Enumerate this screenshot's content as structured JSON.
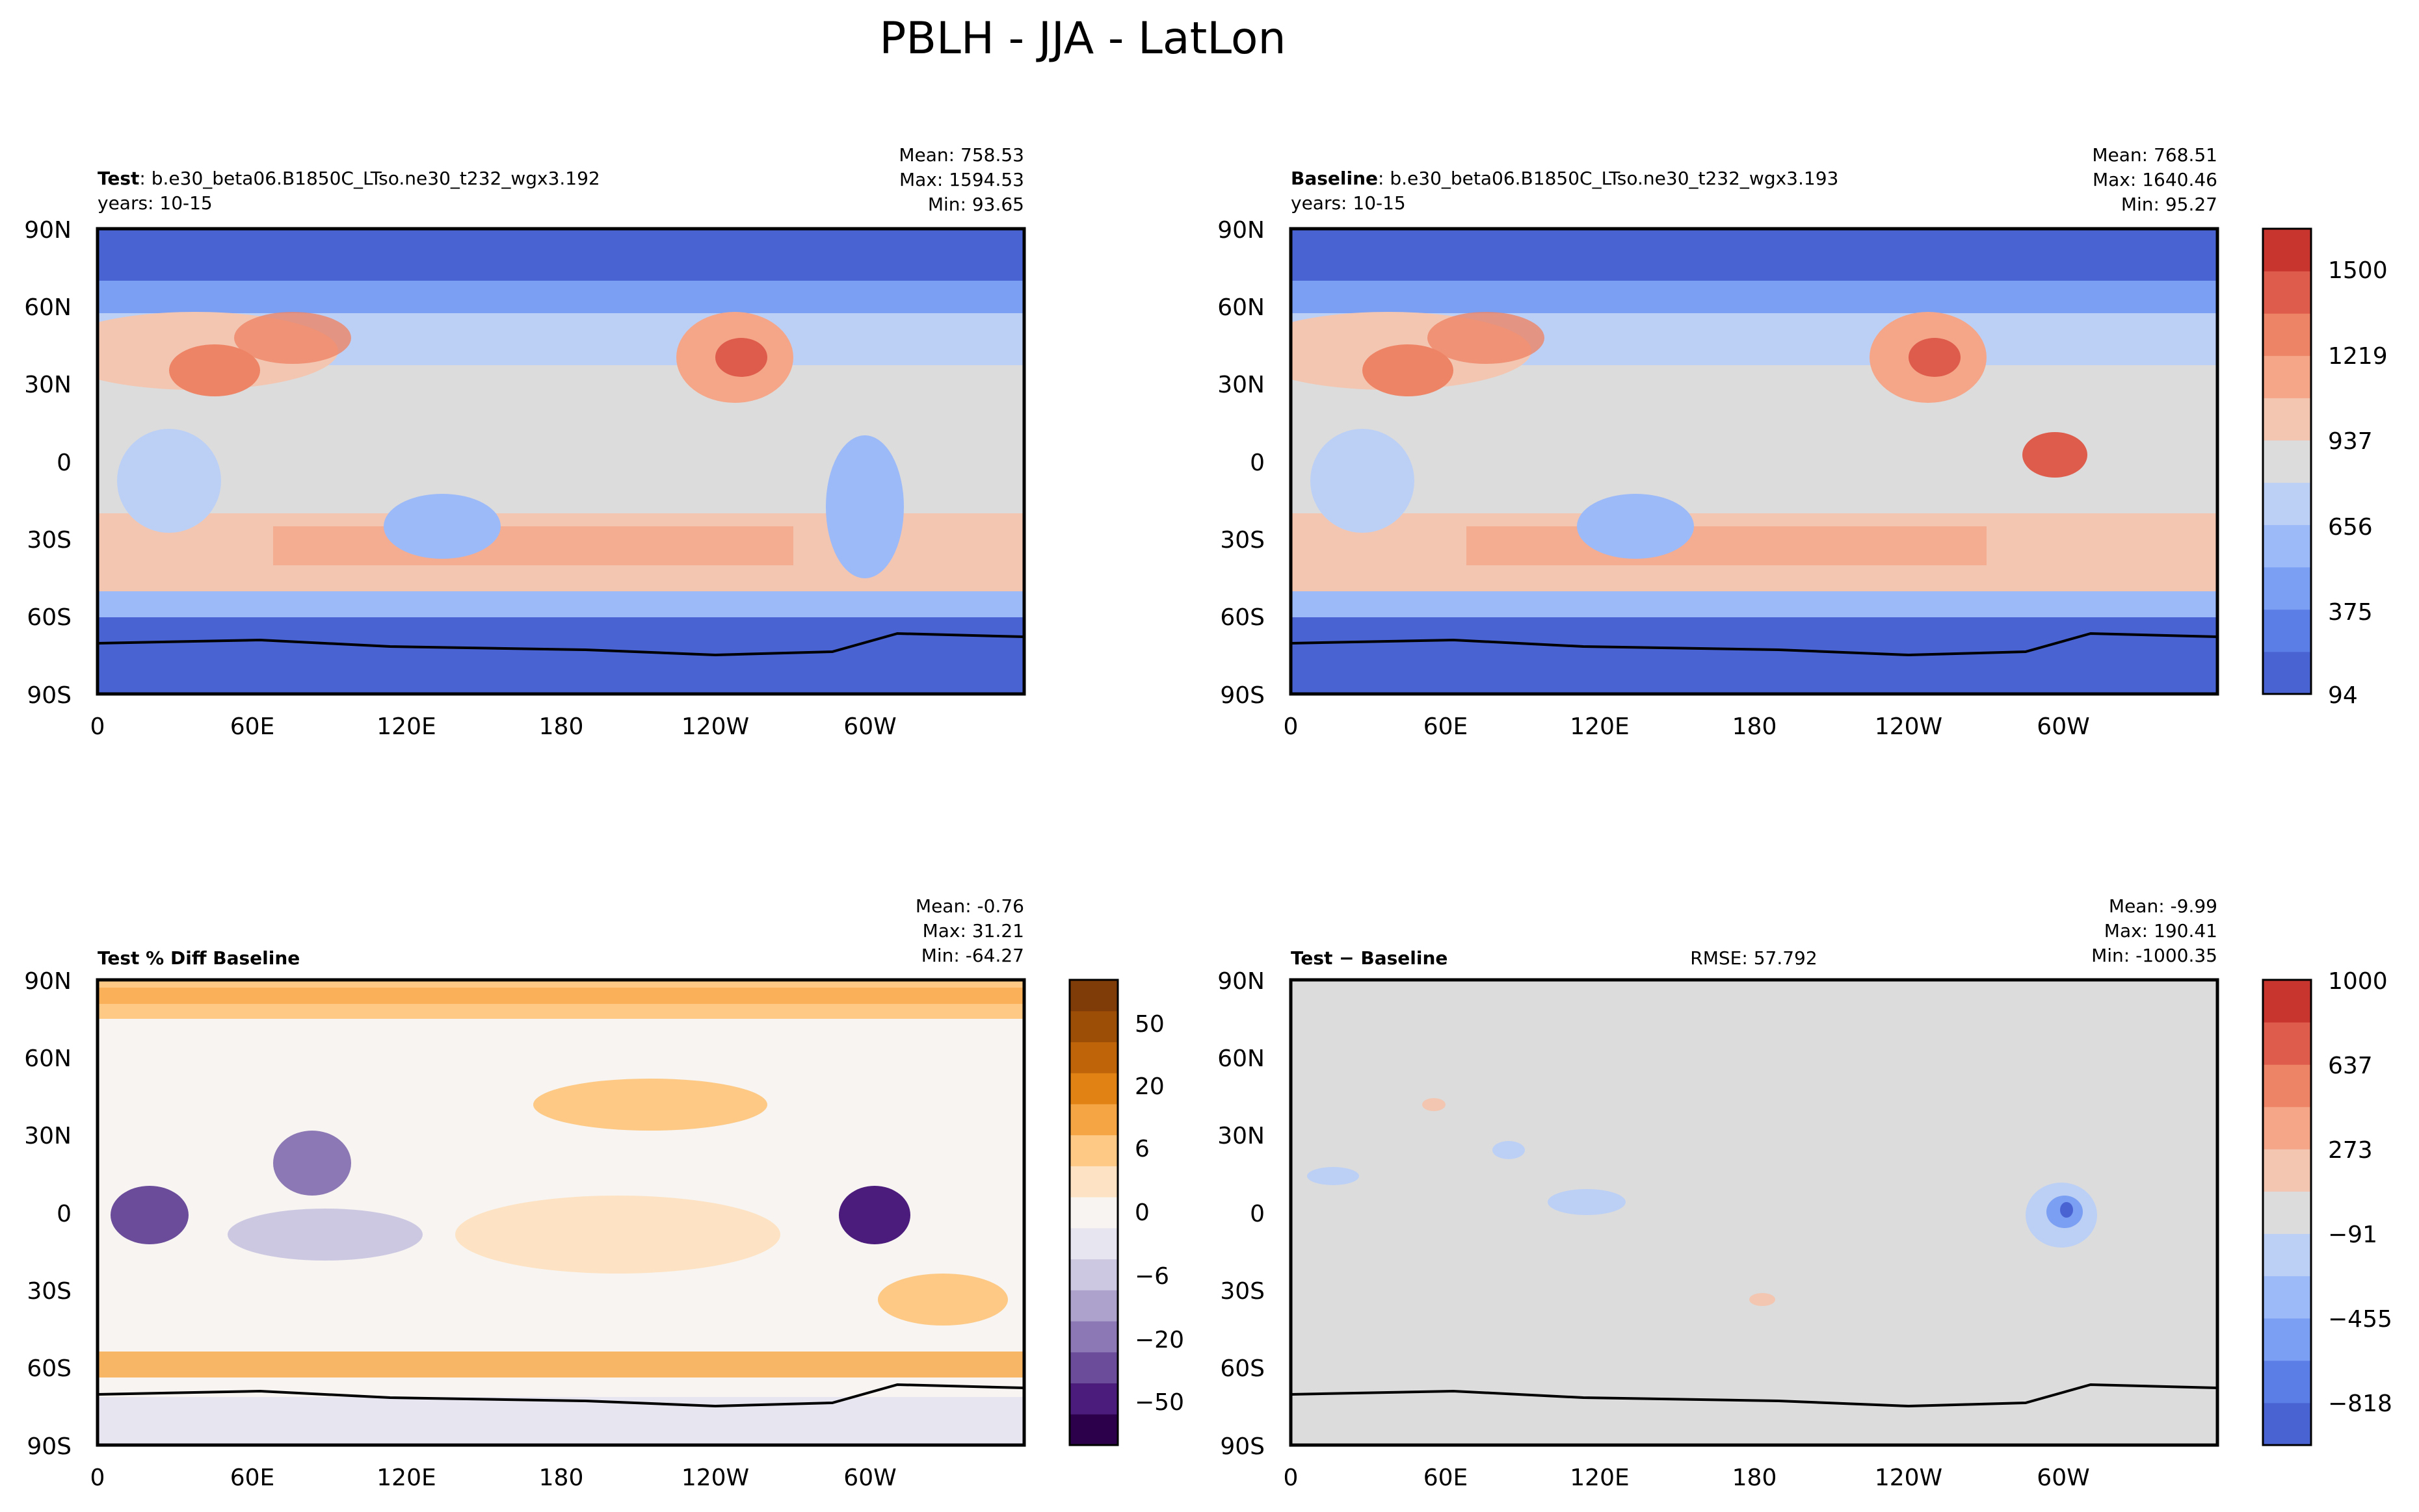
{
  "figure": {
    "title": "PBLH - JJA - LatLon"
  },
  "chart_data": [
    {
      "type": "heatmap",
      "id": "test",
      "label_bold": "Test",
      "label_rest": ": b.e30_beta06.B1850C_LTso.ne30_t232_wgx3.192",
      "years": "years: 10-15",
      "stats": [
        "Mean: 758.53",
        "Max: 1594.53",
        "Min: 93.65"
      ],
      "xticks": [
        "0",
        "60E",
        "120E",
        "180",
        "120W",
        "60W"
      ],
      "yticks": [
        "90N",
        "60N",
        "30N",
        "0",
        "30S",
        "60S",
        "90S"
      ],
      "colormap": "coolwarm"
    },
    {
      "type": "heatmap",
      "id": "baseline",
      "label_bold": "Baseline",
      "label_rest": ": b.e30_beta06.B1850C_LTso.ne30_t232_wgx3.193",
      "years": "years: 10-15",
      "stats": [
        "Mean: 768.51",
        "Max: 1640.46",
        "Min: 95.27"
      ],
      "xticks": [
        "0",
        "60E",
        "120E",
        "180",
        "120W",
        "60W"
      ],
      "yticks": [
        "90N",
        "60N",
        "30N",
        "0",
        "30S",
        "60S",
        "90S"
      ],
      "colormap": "coolwarm",
      "colorbar_ticks": [
        "1500",
        "1219",
        "937",
        "656",
        "375",
        "94"
      ]
    },
    {
      "type": "heatmap",
      "id": "pctdiff",
      "label_bold": "Test % Diff Baseline",
      "stats": [
        "Mean: -0.76",
        "Max: 31.21",
        "Min: -64.27"
      ],
      "xticks": [
        "0",
        "60E",
        "120E",
        "180",
        "120W",
        "60W"
      ],
      "yticks": [
        "90N",
        "60N",
        "30N",
        "0",
        "30S",
        "60S",
        "90S"
      ],
      "colormap": "PuOr_r",
      "colorbar_ticks": [
        "50",
        "20",
        "6",
        "0",
        "−6",
        "−20",
        "−50"
      ]
    },
    {
      "type": "heatmap",
      "id": "diff",
      "label_bold": "Test − Baseline",
      "rmse": "RMSE: 57.792",
      "stats": [
        "Mean: -9.99",
        "Max: 190.41",
        "Min: -1000.35"
      ],
      "xticks": [
        "0",
        "60E",
        "120E",
        "180",
        "120W",
        "60W"
      ],
      "yticks": [
        "90N",
        "60N",
        "30N",
        "0",
        "30S",
        "60S",
        "90S"
      ],
      "colormap": "coolwarm",
      "colorbar_ticks": [
        "1000",
        "637",
        "273",
        "−91",
        "−455",
        "−818"
      ]
    }
  ],
  "colors": {
    "coolwarm": [
      "#4a63d3",
      "#5b7de6",
      "#7b9ff2",
      "#9cb9f8",
      "#bcd0f5",
      "#dcdcdc",
      "#f3c6b2",
      "#f5a688",
      "#ee8466",
      "#de5c4b",
      "#c8352f"
    ],
    "puor": [
      "#2d004b",
      "#4b1c7c",
      "#6a4c9b",
      "#8c78b4",
      "#aca2cc",
      "#cdc8e2",
      "#e6e5f0",
      "#f7f4f1",
      "#fde3c3",
      "#fdc985",
      "#f6a544",
      "#e08214",
      "#bf6409",
      "#9c4d06",
      "#7f3b08"
    ]
  }
}
